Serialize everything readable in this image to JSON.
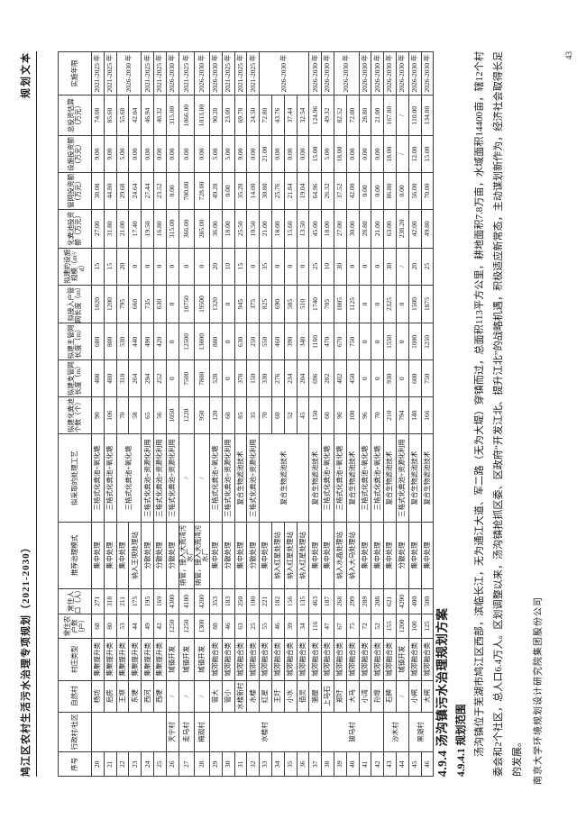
{
  "page": {
    "number": "43"
  },
  "header": {
    "title": "鸠江区农村生活污水治理专项规划（2021-2030）",
    "doc_type": "规划文本"
  },
  "sections": {
    "h1": "4.9.4 汤沟镇污水治理规划方案",
    "h2": "4.9.4.1 规划范围",
    "paragraph": "汤沟镇位于芜湖市鸠江区西部，滨临长江，无为通江大道、军二路（无为大堤）穿镇而过，总面积113平方公里，耕地面积7.8万亩，水域面积14400亩，辖12个村委会和2个社区，总人口6.4万人。区划调整以来，汤沟镇抢抓区委、区政府“开发江北、提升江北”的战略机遇，积极适应新常态，主动谋划新作为，经济社会取得长足的发展。",
    "footer_company": "南京大学环境规划设计研究院集团股份公司"
  },
  "table": {
    "headers": [
      "序号",
      "行政村/社区",
      "自然村",
      "村庄类型",
      "常住农户数（户）",
      "常住人口（人）",
      "推荐治理模式",
      "拟采取的处理工艺",
      "拟建化粪池个数（个）",
      "拟建支管网长度（m）",
      "拟建主管网长度（m）",
      "拟接入户管网长度（m）",
      "拟建的设施规模（m³/d）",
      "化粪池投资额（万元）",
      "管网投资额（万元）",
      "设施投资额（万元）",
      "总投资估算（万元）",
      "实施年限"
    ],
    "rows": [
      {
        "sn": "20",
        "admin": {
          "t": "",
          "s": 6
        },
        "hamlet": "杨坊",
        "type": "集聚提升类",
        "hh": "68",
        "pop": "271",
        "mode": "集中处理",
        "proc": {
          "t": "三格式化粪池+氧化塘",
          "s": 1
        },
        "tanks": "90",
        "branch": "408",
        "main": "680",
        "house": "1020",
        "scale": "15",
        "inv_tank": "27.00",
        "inv_pipe": "38.08",
        "inv_fac": "9.00",
        "inv_total": "74.08",
        "years": {
          "t": "2021-2025 年",
          "s": 1
        }
      },
      {
        "sn": "21",
        "admin": null,
        "hamlet": "后房",
        "type": "集聚提升类",
        "hh": "80",
        "pop": "318",
        "mode": "集中处理",
        "proc": {
          "t": "三格式化粪池+氧化塘",
          "s": 1
        },
        "tanks": "106",
        "branch": "480",
        "main": "800",
        "house": "1200",
        "scale": "15",
        "inv_tank": "31.80",
        "inv_pipe": "44.80",
        "inv_fac": "9.00",
        "inv_total": "85.60",
        "years": {
          "t": "2021-2025 年",
          "s": 1
        }
      },
      {
        "sn": "22",
        "admin": null,
        "hamlet": "王坝",
        "type": "集聚提升类",
        "hh": "53",
        "pop": "211",
        "mode": "集中处理",
        "proc": {
          "t": "三格式化粪池+氧化塘",
          "s": 2
        },
        "tanks": "70",
        "branch": "318",
        "main": "530",
        "house": "795",
        "scale": "20",
        "inv_tank": "21.00",
        "inv_pipe": "29.68",
        "inv_fac": "5.00",
        "inv_total": "55.68",
        "years": {
          "t": "2026-2030 年",
          "s": 2
        }
      },
      {
        "sn": "23",
        "admin": null,
        "hamlet": "东埂",
        "type": "集聚提升类",
        "hh": "44",
        "pop": "175",
        "mode": "纳入王坝处理站",
        "proc": null,
        "tanks": "58",
        "branch": "264",
        "main": "440",
        "house": "660",
        "scale": "0",
        "inv_tank": "17.40",
        "inv_pipe": "24.64",
        "inv_fac": "0.00",
        "inv_total": "42.04",
        "years": null
      },
      {
        "sn": "24",
        "admin": null,
        "hamlet": "西河",
        "type": "集聚提升类",
        "hh": "49",
        "pop": "195",
        "mode": "分散处理",
        "proc": {
          "t": "三格式化粪池+资源化利用",
          "s": 1
        },
        "tanks": "65",
        "branch": "294",
        "main": "490",
        "house": "735",
        "scale": "0",
        "inv_tank": "19.50",
        "inv_pipe": "27.44",
        "inv_fac": "0.00",
        "inv_total": "46.94",
        "years": {
          "t": "2021-2025 年",
          "s": 1
        }
      },
      {
        "sn": "25",
        "admin": null,
        "hamlet": "西埂",
        "type": "集聚提升类",
        "hh": "42",
        "pop": "169",
        "mode": "分散处理",
        "proc": {
          "t": "三格式化粪池+资源化利用",
          "s": 1
        },
        "tanks": "56",
        "branch": "252",
        "main": "420",
        "house": "630",
        "scale": "0",
        "inv_tank": "16.80",
        "inv_pipe": "23.52",
        "inv_fac": "0.00",
        "inv_total": "40.32",
        "years": {
          "t": "2021-2025 年",
          "s": 1
        }
      },
      {
        "sn": "26",
        "admin": {
          "t": "天宁村",
          "s": 1
        },
        "hamlet": "/",
        "type": "城镇开发",
        "hh": "1250",
        "pop": "4300",
        "mode": "分散处理",
        "proc": {
          "t": "三格式化粪池+资源化利用",
          "s": 1
        },
        "tanks": "1050",
        "branch": "0",
        "main": "0",
        "house": "0",
        "scale": "0",
        "inv_tank": "315.00",
        "inv_pipe": "0.00",
        "inv_fac": "0.00",
        "inv_total": "315.00",
        "years": {
          "t": "2026-2030 年",
          "s": 1
        }
      },
      {
        "sn": "27",
        "admin": {
          "t": "走马村",
          "s": 1
        },
        "hamlet": "/",
        "type": "城镇开发",
        "hh": "1250",
        "pop": "4100",
        "mode": "纳管，接入大荒湾污水厂",
        "proc": {
          "t": "/",
          "s": 1
        },
        "tanks": "1220",
        "branch": "7500",
        "main": "12500",
        "house": "18750",
        "scale": "0",
        "inv_tank": "366.00",
        "inv_pipe": "700.00",
        "inv_fac": "0.00",
        "inv_total": "1066.00",
        "years": {
          "t": "2021-2025 年",
          "s": 1
        }
      },
      {
        "sn": "28",
        "admin": {
          "t": "梅观村",
          "s": 1
        },
        "hamlet": "/",
        "type": "城镇开发",
        "hh": "1300",
        "pop": "4200",
        "mode": "纳管，接入大荒湾污水厂",
        "proc": {
          "t": "/",
          "s": 1
        },
        "tanks": "950",
        "branch": "7800",
        "main": "13000",
        "house": "19500",
        "scale": "0",
        "inv_tank": "285.00",
        "inv_pipe": "728.00",
        "inv_fac": "0.00",
        "inv_total": "1013.00",
        "years": {
          "t": "2026-2030 年",
          "s": 1
        }
      },
      {
        "sn": "29",
        "admin": {
          "t": "水楼村",
          "s": 9
        },
        "hamlet": "管大",
        "type": "城郊融合类",
        "hh": "88",
        "pop": "353",
        "mode": "集中处理",
        "proc": {
          "t": "三格式化粪池+氧化塘",
          "s": 1
        },
        "tanks": "120",
        "branch": "528",
        "main": "880",
        "house": "1320",
        "scale": "20",
        "inv_tank": "36.00",
        "inv_pipe": "49.28",
        "inv_fac": "5.00",
        "inv_total": "90.28",
        "years": {
          "t": "2026-2030 年",
          "s": 1
        }
      },
      {
        "sn": "30",
        "admin": null,
        "hamlet": "管小",
        "type": "城郊融合类",
        "hh": "46",
        "pop": "183",
        "mode": "分散处理",
        "proc": {
          "t": "三格式化粪池+资源化利用",
          "s": 1
        },
        "tanks": "60",
        "branch": "0",
        "main": "0",
        "house": "0",
        "scale": "10",
        "inv_tank": "18.00",
        "inv_pipe": "0.00",
        "inv_fac": "5.00",
        "inv_total": "23.00",
        "years": {
          "t": "2021-2025 年",
          "s": 1
        }
      },
      {
        "sn": "31",
        "admin": null,
        "hamlet": "水楼新村",
        "type": "城郊融合类",
        "hh": "63",
        "pop": "250",
        "mode": "集中处理",
        "proc": {
          "t": "复合生物滤池技术",
          "s": 1
        },
        "tanks": "85",
        "branch": "378",
        "main": "630",
        "house": "945",
        "scale": "15",
        "inv_tank": "25.50",
        "inv_pipe": "35.28",
        "inv_fac": "9.00",
        "inv_total": "69.78",
        "years": {
          "t": "2021-2025 年",
          "s": 1
        }
      },
      {
        "sn": "32",
        "admin": null,
        "hamlet": "水楼",
        "type": "城郊融合类",
        "hh": "25",
        "pop": "100",
        "mode": "分散处理",
        "proc": {
          "t": "三格式化粪池+资源化利用",
          "s": 1
        },
        "tanks": "35",
        "branch": "150",
        "main": "250",
        "house": "375",
        "scale": "0",
        "inv_tank": "10.50",
        "inv_pipe": "14.00",
        "inv_fac": "0.00",
        "inv_total": "24.50",
        "years": {
          "t": "2021-2025 年",
          "s": 1
        }
      },
      {
        "sn": "33",
        "admin": null,
        "hamlet": "红星",
        "type": "城郊融合类",
        "hh": "55",
        "pop": "221",
        "mode": "集中处理",
        "proc": {
          "t": "复合生物滤池技术",
          "s": 4
        },
        "tanks": "70",
        "branch": "330",
        "main": "550",
        "house": "825",
        "scale": "35",
        "inv_tank": "21.00",
        "inv_pipe": "30.80",
        "inv_fac": "21.00",
        "inv_total": "72.80",
        "years": {
          "t": "2026-2030 年",
          "s": 4
        }
      },
      {
        "sn": "34",
        "admin": null,
        "hamlet": "王圩",
        "type": "城郊融合类",
        "hh": "46",
        "pop": "182",
        "mode": "纳入红星处理站",
        "proc": null,
        "tanks": "60",
        "branch": "276",
        "main": "460",
        "house": "690",
        "scale": "0",
        "inv_tank": "18.00",
        "inv_pipe": "25.76",
        "inv_fac": "0.00",
        "inv_total": "43.76",
        "years": null
      },
      {
        "sn": "35",
        "admin": null,
        "hamlet": "小水",
        "type": "城郊融合类",
        "hh": "39",
        "pop": "156",
        "mode": "纳入红星处理站",
        "proc": null,
        "tanks": "52",
        "branch": "234",
        "main": "390",
        "house": "585",
        "scale": "0",
        "inv_tank": "15.60",
        "inv_pipe": "21.84",
        "inv_fac": "0.00",
        "inv_total": "37.44",
        "years": null
      },
      {
        "sn": "36",
        "admin": null,
        "hamlet": "佰灵",
        "type": "城郊融合类",
        "hh": "34",
        "pop": "135",
        "mode": "纳入红星处理站",
        "proc": null,
        "tanks": "45",
        "branch": "204",
        "main": "340",
        "house": "510",
        "scale": "0",
        "inv_tank": "13.50",
        "inv_pipe": "19.04",
        "inv_fac": "0.00",
        "inv_total": "32.54",
        "years": null
      },
      {
        "sn": "37",
        "admin": null,
        "hamlet": "骆屋",
        "type": "城郊融合类",
        "hh": "116",
        "pop": "463",
        "mode": "集中处理",
        "proc": {
          "t": "复合生物滤池技术",
          "s": 1
        },
        "tanks": "150",
        "branch": "696",
        "main": "1160",
        "house": "1740",
        "scale": "25",
        "inv_tank": "45.00",
        "inv_pipe": "64.96",
        "inv_fac": "15.00",
        "inv_total": "124.96",
        "years": {
          "t": "2026-2030 年",
          "s": 1
        }
      },
      {
        "sn": "38",
        "admin": {
          "t": "骏马村",
          "s": 5
        },
        "hamlet": "上马石",
        "type": "城郊融合类",
        "hh": "47",
        "pop": "187",
        "mode": "集中处理",
        "proc": {
          "t": "三格式化粪池+氧化塘",
          "s": 1
        },
        "tanks": "60",
        "branch": "282",
        "main": "470",
        "house": "705",
        "scale": "10",
        "inv_tank": "18.00",
        "inv_pipe": "26.32",
        "inv_fac": "5.00",
        "inv_total": "49.32",
        "years": {
          "t": "2026-2030 年",
          "s": 1
        }
      },
      {
        "sn": "39",
        "admin": null,
        "hamlet": "郑圩",
        "type": "城郊融合类",
        "hh": "67",
        "pop": "268",
        "mode": "纳入水晶处理站",
        "proc": {
          "t": "三格式化粪池+氧化塘",
          "s": 1
        },
        "tanks": "90",
        "branch": "402",
        "main": "670",
        "house": "1005",
        "scale": "30",
        "inv_tank": "27.00",
        "inv_pipe": "37.52",
        "inv_fac": "18.00",
        "inv_total": "82.52",
        "years": {
          "t": "2026-2030 年",
          "s": 2
        }
      },
      {
        "sn": "40",
        "admin": null,
        "hamlet": "大马",
        "type": "城郊融合类",
        "hh": "75",
        "pop": "299",
        "mode": "纳入大马处理站",
        "proc": {
          "t": "复合生物滤池技术",
          "s": 1
        },
        "tanks": "100",
        "branch": "450",
        "main": "750",
        "house": "1125",
        "scale": "0",
        "inv_tank": "30.00",
        "inv_pipe": "42.00",
        "inv_fac": "0.00",
        "inv_total": "72.00",
        "years": null
      },
      {
        "sn": "41",
        "admin": null,
        "hamlet": "小湾",
        "type": "城郊融合类",
        "hh": "72",
        "pop": "289",
        "mode": "集中处理",
        "proc": {
          "t": "三格式化粪池+氧化塘",
          "s": 1
        },
        "tanks": "96",
        "branch": "0",
        "main": "0",
        "house": "0",
        "scale": "0",
        "inv_tank": "28.80",
        "inv_pipe": "0.00",
        "inv_fac": "0.00",
        "inv_total": "28.80",
        "years": {
          "t": "2026-2030 年",
          "s": 1
        }
      },
      {
        "sn": "42",
        "admin": null,
        "hamlet": "孙埠",
        "type": "城郊融合类",
        "hh": "52",
        "pop": "208",
        "mode": "集中处理",
        "proc": {
          "t": "三格式化粪池+氧化塘",
          "s": 1
        },
        "tanks": "70",
        "branch": "0",
        "main": "0",
        "house": "0",
        "scale": "0",
        "inv_tank": "21.00",
        "inv_pipe": "0.00",
        "inv_fac": "0.00",
        "inv_total": "21.00",
        "years": {
          "t": "2026-2030 年",
          "s": 1
        }
      },
      {
        "sn": "43",
        "admin": {
          "t": "沙木村",
          "s": 2
        },
        "hamlet": "石牌",
        "type": "城郊融合类",
        "hh": "155",
        "pop": "621",
        "mode": "集中处理",
        "proc": {
          "t": "复合生物滤池技术",
          "s": 1
        },
        "tanks": "210",
        "branch": "930",
        "main": "1550",
        "house": "2325",
        "scale": "30",
        "inv_tank": "63.00",
        "inv_pipe": "86.80",
        "inv_fac": "18.00",
        "inv_total": "167.80",
        "years": {
          "t": "2026-2030 年",
          "s": 1
        }
      },
      {
        "sn": "44",
        "admin": null,
        "hamlet": "/",
        "type": "城镇开发",
        "hh": "1200",
        "pop": "4200",
        "mode": "分散处理",
        "proc": {
          "t": "三格式化粪池+资源化利用",
          "s": 1
        },
        "tanks": "794",
        "branch": "0",
        "main": "0",
        "house": "0",
        "scale": "/",
        "inv_tank": "238.20",
        "inv_pipe": "0.00",
        "inv_fac": "/",
        "inv_total": "/",
        "years": {
          "t": "2026-2030 年",
          "s": 1
        }
      },
      {
        "sn": "45",
        "admin": {
          "t": "黑湖村",
          "s": 2
        },
        "hamlet": "小闸",
        "type": "城郊融合类",
        "hh": "100",
        "pop": "400",
        "mode": "集中处理",
        "proc": {
          "t": "复合生物滤池技术",
          "s": 1
        },
        "tanks": "140",
        "branch": "600",
        "main": "1000",
        "house": "1500",
        "scale": "20",
        "inv_tank": "42.00",
        "inv_pipe": "56.00",
        "inv_fac": "12.00",
        "inv_total": "110.00",
        "years": {
          "t": "2026-2030 年",
          "s": 1
        }
      },
      {
        "sn": "46",
        "admin": null,
        "hamlet": "大闸",
        "type": "城郊融合类",
        "hh": "125",
        "pop": "500",
        "mode": "集中处理",
        "proc": {
          "t": "复合生物滤池技术",
          "s": 1
        },
        "tanks": "166",
        "branch": "750",
        "main": "1250",
        "house": "1875",
        "scale": "25",
        "inv_tank": "49.80",
        "inv_pipe": "70.00",
        "inv_fac": "15.00",
        "inv_total": "134.80",
        "years": {
          "t": "2026-2030 年",
          "s": 1
        }
      }
    ]
  }
}
